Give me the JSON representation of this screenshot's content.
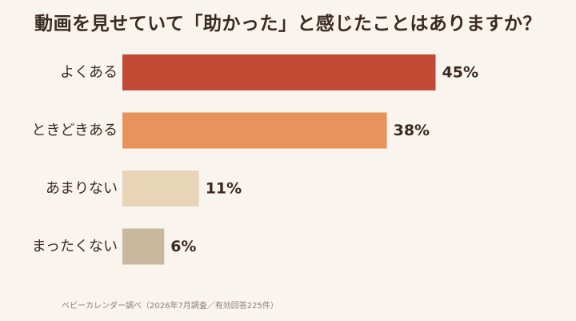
{
  "chart_data": {
    "type": "bar",
    "orientation": "horizontal",
    "title": "動画を見せていて「助かった」と感じたことはありますか？",
    "categories": [
      "よくある",
      "ときどきある",
      "あまりない",
      "まったくない"
    ],
    "values": [
      45,
      38,
      11,
      6
    ],
    "value_labels": [
      "45%",
      "38%",
      "11%",
      "6%"
    ],
    "colors": [
      "#c24a35",
      "#e8935c",
      "#e8d4b6",
      "#c9b79e"
    ],
    "xlim": [
      0,
      100
    ],
    "xlabel": "",
    "ylabel": "",
    "grid": false,
    "legend": "none"
  },
  "source": "ベビーカレンダー調べ（2026年7月調査／有効回答225件）"
}
